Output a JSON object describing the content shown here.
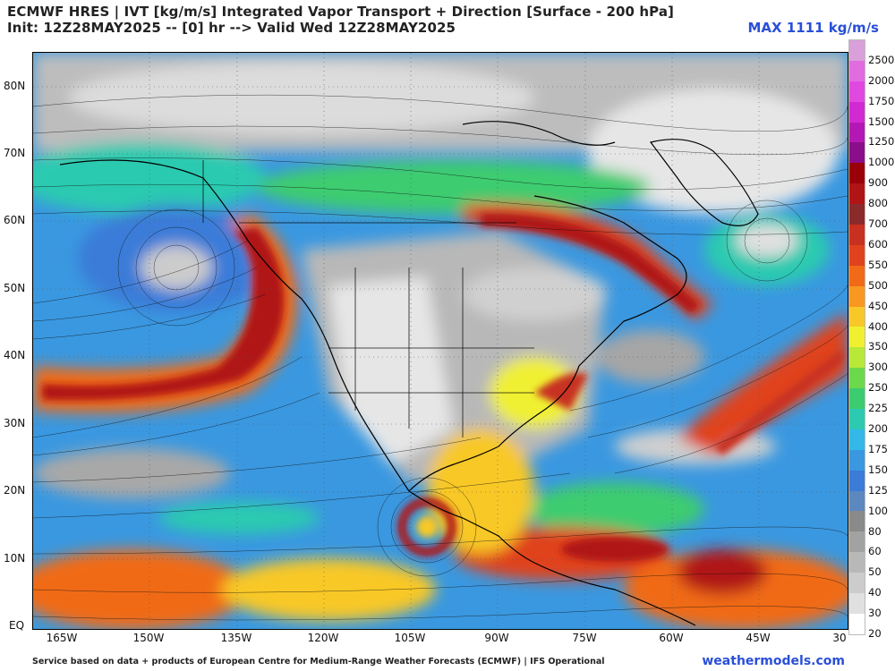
{
  "header": {
    "title": "ECMWF HRES | IVT [kg/m/s] Integrated Vapor Transport + Direction [Surface - 200 hPa]",
    "subtitle": "Init: 12Z28MAY2025 -- [0] hr --> Valid Wed 12Z28MAY2025",
    "max_label": "MAX 1111 kg/m/s"
  },
  "axes": {
    "lat_labels": [
      "80N",
      "70N",
      "60N",
      "50N",
      "40N",
      "30N",
      "20N",
      "10N",
      "EQ"
    ],
    "lon_labels": [
      "165W",
      "150W",
      "135W",
      "120W",
      "105W",
      "90W",
      "75W",
      "60W",
      "45W",
      "30"
    ]
  },
  "legend": {
    "levels": [
      "2500",
      "2000",
      "1750",
      "1500",
      "1250",
      "1000",
      "900",
      "800",
      "700",
      "600",
      "550",
      "500",
      "450",
      "400",
      "350",
      "300",
      "250",
      "225",
      "200",
      "175",
      "150",
      "125",
      "100",
      "80",
      "60",
      "50",
      "40",
      "30",
      "20"
    ],
    "colors": [
      "#d9a0d9",
      "#e06ce0",
      "#e049e0",
      "#d22ad2",
      "#b418b4",
      "#8a0e8a",
      "#9a0008",
      "#b01414",
      "#8a2a2a",
      "#c83020",
      "#e0421e",
      "#f06a18",
      "#f89820",
      "#f8c828",
      "#f0f030",
      "#b8e838",
      "#6cd84c",
      "#3ccc70",
      "#2ccab0",
      "#34b8e8",
      "#3a98e0",
      "#3a7cd8",
      "#5c88c0",
      "#8a8a8a",
      "#a2a2a2",
      "#b8b8b8",
      "#cccccc",
      "#e0e0e0",
      "#ffffff"
    ]
  },
  "map": {
    "max_value": 1111,
    "features": [
      "North America",
      "Greenland",
      "Central America",
      "Atmospheric river Gulf of Alaska",
      "Tropical cyclone Eastern Pacific"
    ]
  },
  "footer": {
    "credit": "Service based on data + products of European Centre for Medium-Range Weather Forecasts (ECMWF) | IFS Operational",
    "site": "weathermodels.com"
  }
}
